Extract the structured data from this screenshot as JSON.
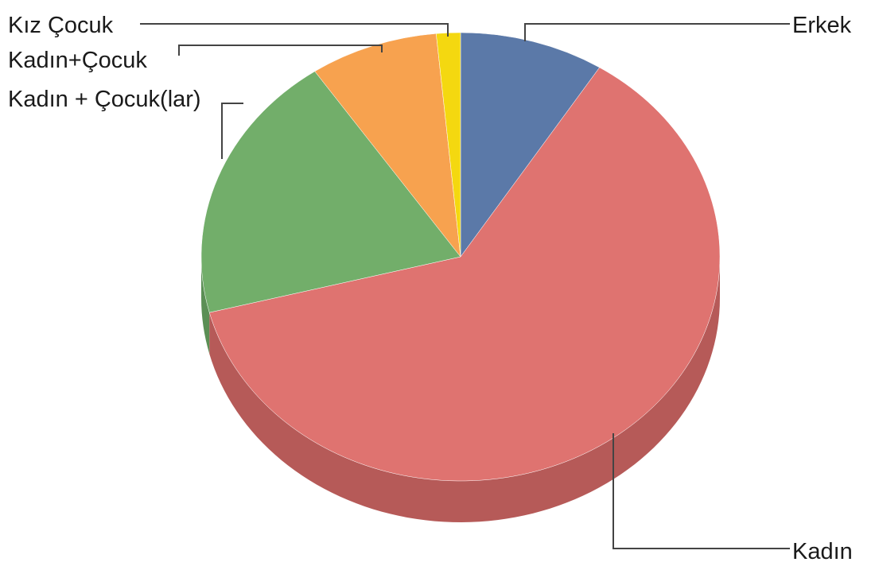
{
  "chart_data": {
    "type": "pie",
    "title": "",
    "style": "3d",
    "start_angle_deg": 0,
    "direction": "clockwise",
    "slices": [
      {
        "label": "Erkek",
        "value": 9.0,
        "color": "#5b79a8",
        "side_color": "#47608a"
      },
      {
        "label": "Kadın",
        "value": 62.0,
        "color": "#df7370",
        "side_color": "#b65a58"
      },
      {
        "label": "Kadın + Çocuk(lar)",
        "value": 19.5,
        "color": "#72ae6a",
        "side_color": "#5b8f55"
      },
      {
        "label": "Kadın+Çocuk",
        "value": 8.0,
        "color": "#f7a24f",
        "side_color": "#cf843e"
      },
      {
        "label": "Kız Çocuk",
        "value": 1.5,
        "color": "#f4d810",
        "side_color": "#c9b10c"
      }
    ]
  }
}
